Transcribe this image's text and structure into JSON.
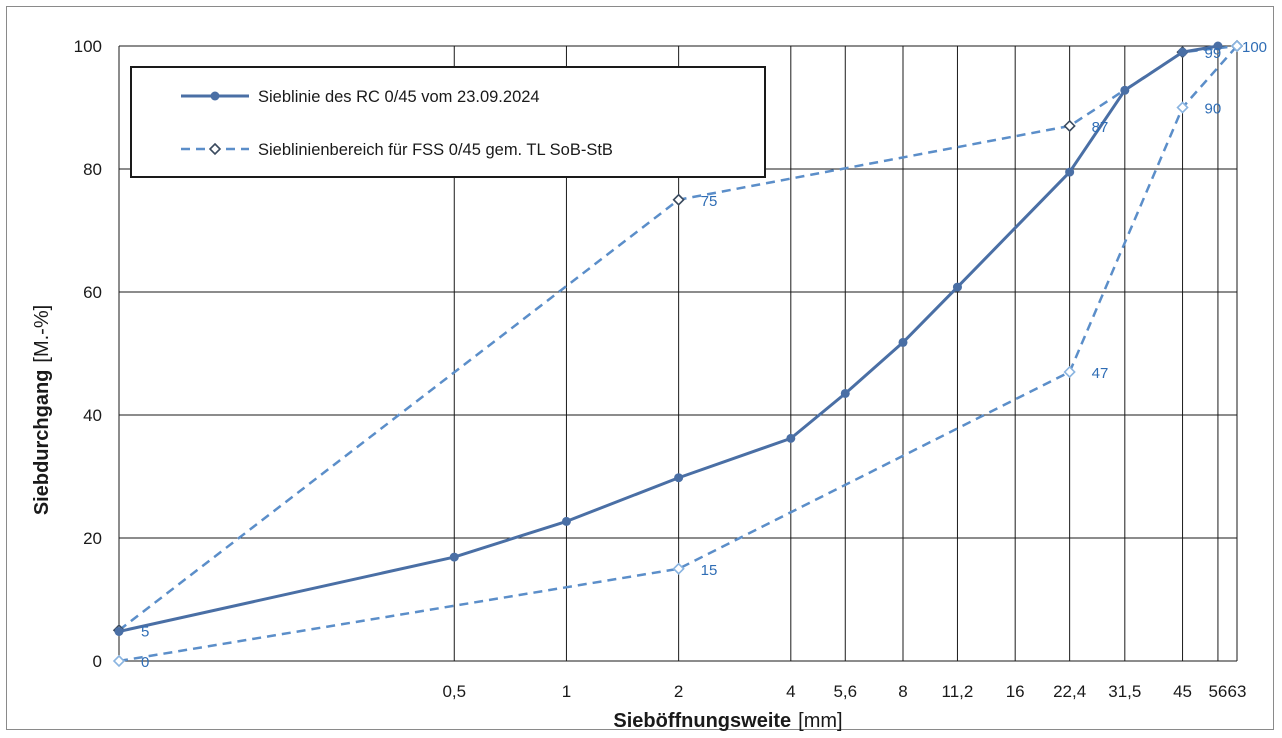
{
  "chart_data": {
    "type": "line",
    "title": "",
    "xlabel": "Sieböffnungsweite",
    "xlabel_unit": "[mm]",
    "ylabel": "Siebdurchgang",
    "ylabel_unit": "[M.-%]",
    "x_scale": "log",
    "x_ticks": [
      {
        "value": 0.5,
        "label": "0,5"
      },
      {
        "value": 1,
        "label": "1"
      },
      {
        "value": 2,
        "label": "2"
      },
      {
        "value": 4,
        "label": "4"
      },
      {
        "value": 5.6,
        "label": "5,6"
      },
      {
        "value": 8,
        "label": "8"
      },
      {
        "value": 11.2,
        "label": "11,2"
      },
      {
        "value": 16,
        "label": "16"
      },
      {
        "value": 22.4,
        "label": "22,4"
      },
      {
        "value": 31.5,
        "label": "31,5"
      },
      {
        "value": 45,
        "label": "45"
      },
      {
        "value": 56,
        "label": "56"
      },
      {
        "value": 63,
        "label": "63"
      }
    ],
    "ylim": [
      0,
      100
    ],
    "y_ticks": [
      0,
      20,
      40,
      60,
      80,
      100
    ],
    "grid": true,
    "legend_position": "top-left",
    "series": [
      {
        "name": "Sieblinie des RC 0/45 vom 23.09.2024",
        "style": "solid",
        "marker": "filled-circle",
        "color": "#4a6fa5",
        "x": [
          0.063,
          0.5,
          1,
          2,
          4,
          5.6,
          8,
          11.2,
          22.4,
          31.5,
          45,
          56
        ],
        "values": [
          4.8,
          16.9,
          22.7,
          29.8,
          36.2,
          43.5,
          51.8,
          60.8,
          79.5,
          92.8,
          99.0,
          100
        ]
      },
      {
        "name": "Sieblinienbereich für FSS 0/45 gem. TL SoB-StB",
        "style": "dashed",
        "marker": "open-diamond",
        "color": "#5b8ec9",
        "boundaries": [
          {
            "label": "upper",
            "x": [
              0.063,
              2,
              22.4,
              45,
              63
            ],
            "values": [
              5,
              75,
              87,
              99,
              100
            ],
            "point_labels": [
              "5",
              "75",
              "87",
              "99",
              "100"
            ]
          },
          {
            "label": "lower",
            "x": [
              0.063,
              2,
              22.4,
              45,
              63
            ],
            "values": [
              0,
              15,
              47,
              90,
              100
            ],
            "point_labels": [
              "0",
              "15",
              "47",
              "90",
              ""
            ]
          }
        ]
      }
    ]
  },
  "colors": {
    "measured_line": "#4a6fa5",
    "band_line": "#5b8ec9",
    "band_marker_lower": "#8ab4e0",
    "label_color": "#2f6db5",
    "grid": "#1a1a1a"
  }
}
